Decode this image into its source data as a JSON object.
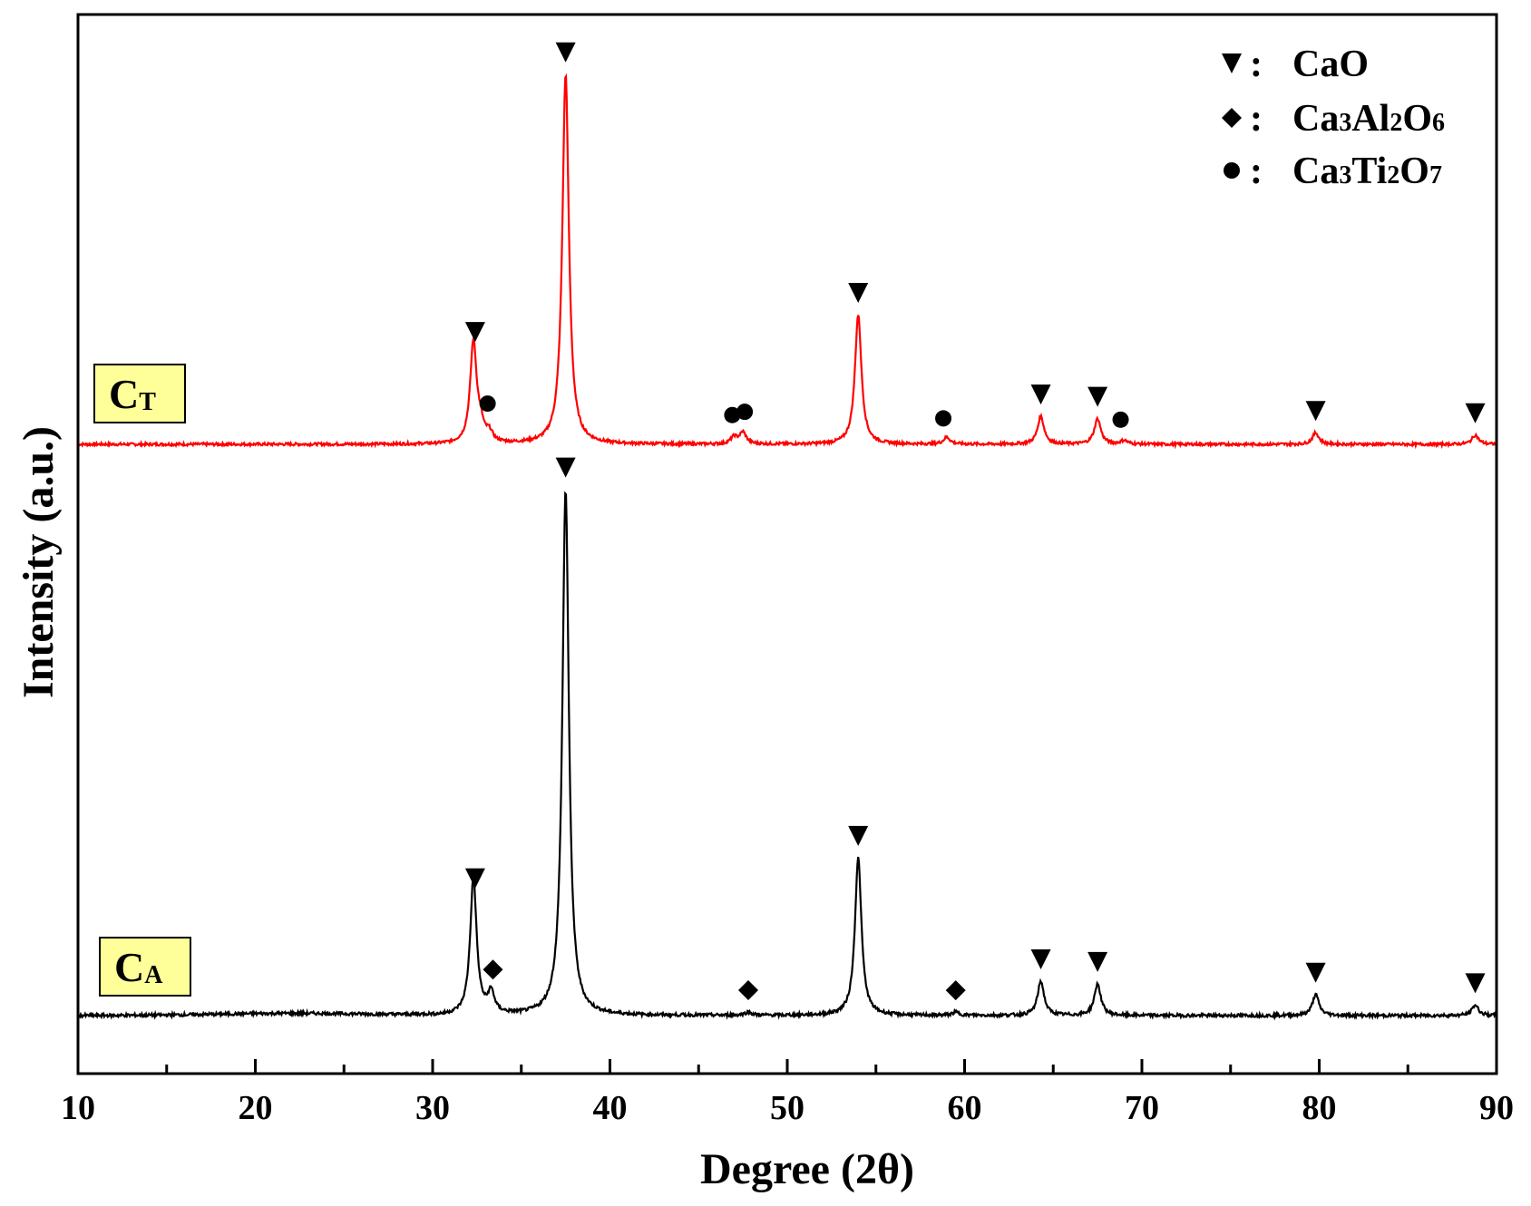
{
  "chart_data": {
    "type": "line",
    "xlabel": "Degree (2θ)",
    "ylabel": "Intensity (a.u.)",
    "xlim": [
      10,
      90
    ],
    "x_ticks": [
      "10",
      "20",
      "30",
      "40",
      "50",
      "60",
      "70",
      "80",
      "90"
    ],
    "y_ticks": "none",
    "grid": false,
    "legend_position": "top-right",
    "legend": [
      {
        "marker": "down-triangle",
        "label_main": "CaO",
        "label_parts": [
          [
            "CaO",
            "n"
          ]
        ]
      },
      {
        "marker": "diamond",
        "label_main": "Ca3Al2O6",
        "label_parts": [
          [
            "Ca",
            "n"
          ],
          [
            "3",
            "s"
          ],
          [
            "Al",
            "n"
          ],
          [
            "2",
            "s"
          ],
          [
            "O",
            "n"
          ],
          [
            "6",
            "s"
          ]
        ]
      },
      {
        "marker": "circle",
        "label_main": "Ca3Ti2O7",
        "label_parts": [
          [
            "Ca",
            "n"
          ],
          [
            "3",
            "s"
          ],
          [
            "Ti",
            "n"
          ],
          [
            "2",
            "s"
          ],
          [
            "O",
            "n"
          ],
          [
            "7",
            "s"
          ]
        ]
      }
    ],
    "series": [
      {
        "name": "CT",
        "label_main": "C",
        "label_sub": "T",
        "color": "#ff0000",
        "baseline": 0,
        "peaks": [
          {
            "x": 32.3,
            "h": 0.22
          },
          {
            "x": 32.7,
            "h": 0.03
          },
          {
            "x": 33.2,
            "h": 0.02
          },
          {
            "x": 37.5,
            "h": 0.8
          },
          {
            "x": 47.0,
            "h": 0.015
          },
          {
            "x": 47.5,
            "h": 0.025
          },
          {
            "x": 54.0,
            "h": 0.28
          },
          {
            "x": 59.0,
            "h": 0.015
          },
          {
            "x": 64.3,
            "h": 0.06
          },
          {
            "x": 67.5,
            "h": 0.055
          },
          {
            "x": 69.0,
            "h": 0.008
          },
          {
            "x": 79.8,
            "h": 0.025
          },
          {
            "x": 88.8,
            "h": 0.02
          }
        ],
        "markers": [
          {
            "x": 32.4,
            "marker": "down-triangle",
            "phase": "CaO"
          },
          {
            "x": 33.1,
            "marker": "circle",
            "phase": "Ca3Ti2O7"
          },
          {
            "x": 37.5,
            "marker": "down-triangle",
            "phase": "CaO"
          },
          {
            "x": 46.9,
            "marker": "circle",
            "phase": "Ca3Ti2O7"
          },
          {
            "x": 47.6,
            "marker": "circle",
            "phase": "Ca3Ti2O7"
          },
          {
            "x": 54.0,
            "marker": "down-triangle",
            "phase": "CaO"
          },
          {
            "x": 58.8,
            "marker": "circle",
            "phase": "Ca3Ti2O7"
          },
          {
            "x": 64.3,
            "marker": "down-triangle",
            "phase": "CaO"
          },
          {
            "x": 67.5,
            "marker": "down-triangle",
            "phase": "CaO"
          },
          {
            "x": 68.8,
            "marker": "circle",
            "phase": "Ca3Ti2O7"
          },
          {
            "x": 79.8,
            "marker": "down-triangle",
            "phase": "CaO"
          },
          {
            "x": 88.8,
            "marker": "down-triangle",
            "phase": "CaO"
          }
        ]
      },
      {
        "name": "CA",
        "label_main": "C",
        "label_sub": "A",
        "color": "#000000",
        "baseline": 0,
        "peaks": [
          {
            "x": 32.3,
            "h": 0.26
          },
          {
            "x": 33.3,
            "h": 0.04
          },
          {
            "x": 37.5,
            "h": 1.0
          },
          {
            "x": 47.8,
            "h": 0.006
          },
          {
            "x": 54.0,
            "h": 0.3
          },
          {
            "x": 59.5,
            "h": 0.006
          },
          {
            "x": 64.3,
            "h": 0.065
          },
          {
            "x": 67.5,
            "h": 0.06
          },
          {
            "x": 79.8,
            "h": 0.04
          },
          {
            "x": 88.8,
            "h": 0.02
          }
        ],
        "markers": [
          {
            "x": 32.4,
            "marker": "down-triangle",
            "phase": "CaO"
          },
          {
            "x": 33.4,
            "marker": "diamond",
            "phase": "Ca3Al2O6"
          },
          {
            "x": 37.5,
            "marker": "down-triangle",
            "phase": "CaO"
          },
          {
            "x": 47.8,
            "marker": "diamond",
            "phase": "Ca3Al2O6"
          },
          {
            "x": 54.0,
            "marker": "down-triangle",
            "phase": "CaO"
          },
          {
            "x": 59.5,
            "marker": "diamond",
            "phase": "Ca3Al2O6"
          },
          {
            "x": 64.3,
            "marker": "down-triangle",
            "phase": "CaO"
          },
          {
            "x": 67.5,
            "marker": "down-triangle",
            "phase": "CaO"
          },
          {
            "x": 79.8,
            "marker": "down-triangle",
            "phase": "CaO"
          },
          {
            "x": 88.8,
            "marker": "down-triangle",
            "phase": "CaO"
          }
        ]
      }
    ]
  },
  "colors": {
    "ct_line": "#ff0000",
    "ca_line": "#000000",
    "label_box_fill": "#ffff99",
    "axis": "#000000"
  }
}
